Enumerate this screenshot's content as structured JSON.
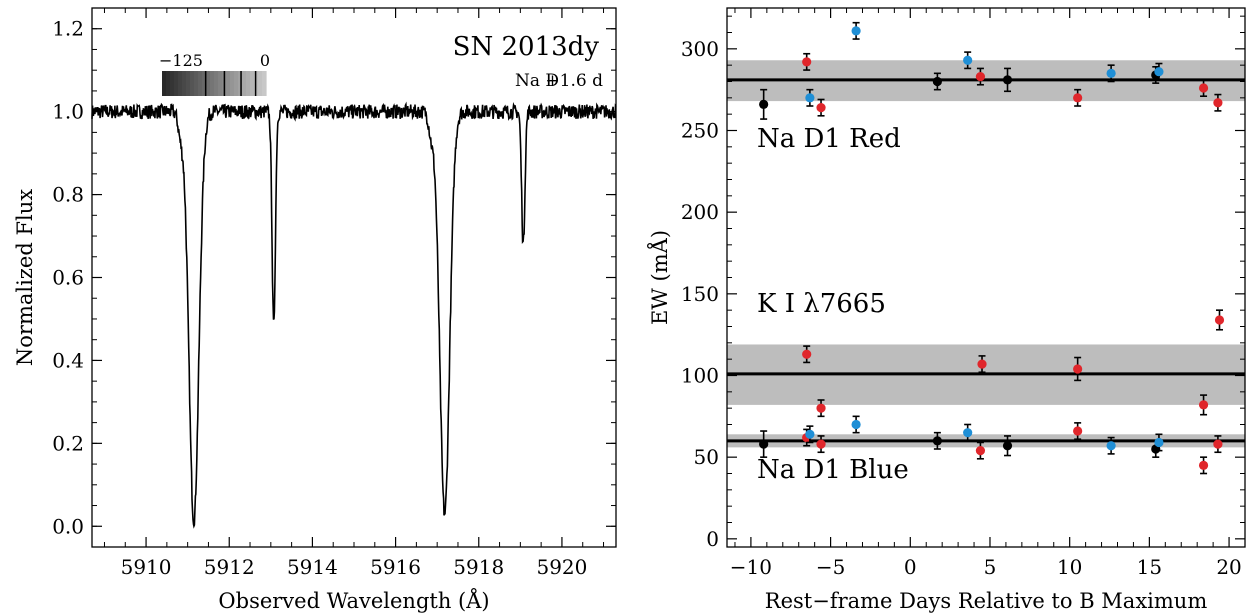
{
  "chart_data": [
    {
      "type": "line",
      "xlabel": "Observed Wavelength (Å)",
      "ylabel": "Normalized Flux",
      "xlim": [
        5908.7,
        5921.3
      ],
      "ylim": [
        -0.05,
        1.25
      ],
      "xticks": [
        5910,
        5912,
        5914,
        5916,
        5918,
        5920
      ],
      "yticks": [
        0.0,
        0.2,
        0.4,
        0.6,
        0.8,
        1.0,
        1.2
      ],
      "xtick_labels": [
        "5910",
        "5912",
        "5914",
        "5916",
        "5918",
        "5920"
      ],
      "ytick_labels": [
        "0.0",
        "0.2",
        "0.4",
        "0.6",
        "0.8",
        "1.0",
        "1.2"
      ],
      "annotation_object": "SN 2013dy",
      "annotation_line": "Na D",
      "annotation_epoch": "+1.6 d",
      "colorbar": {
        "min_label": "−125",
        "max_label": "0"
      },
      "continuum_level": 1.0,
      "absorption_lines": [
        {
          "center": 5911.15,
          "depth": 0.985,
          "width": 0.12
        },
        {
          "center": 5913.07,
          "depth": 0.52,
          "width": 0.04
        },
        {
          "center": 5917.18,
          "depth": 0.97,
          "width": 0.12
        },
        {
          "center": 5919.07,
          "depth": 0.32,
          "width": 0.04
        }
      ]
    },
    {
      "type": "scatter",
      "xlabel": "Rest−frame Days Relative to B Maximum",
      "ylabel": "EW (mÅ)",
      "xlim": [
        -11.5,
        21
      ],
      "ylim": [
        -5,
        325
      ],
      "xticks": [
        -10,
        -5,
        0,
        5,
        10,
        15,
        20
      ],
      "yticks": [
        0,
        50,
        100,
        150,
        200,
        250,
        300
      ],
      "xtick_labels": [
        "−10",
        "−5",
        "0",
        "5",
        "10",
        "15",
        "20"
      ],
      "ytick_labels": [
        "0",
        "50",
        "100",
        "150",
        "200",
        "250",
        "300"
      ],
      "colors": {
        "black": "#000000",
        "blue": "#1f8fd6",
        "red": "#e0262b",
        "band": "#bdbdbd"
      },
      "groups": [
        {
          "label": "Na D1 Red",
          "mean": 281,
          "band": [
            268,
            293
          ],
          "points": [
            {
              "x": -9.2,
              "y": 266,
              "err": 9,
              "color": "black"
            },
            {
              "x": -6.5,
              "y": 292,
              "err": 5,
              "color": "red"
            },
            {
              "x": -6.3,
              "y": 270,
              "err": 5,
              "color": "blue"
            },
            {
              "x": -5.6,
              "y": 264,
              "err": 5,
              "color": "red"
            },
            {
              "x": -3.4,
              "y": 311,
              "err": 5,
              "color": "blue"
            },
            {
              "x": 1.7,
              "y": 280,
              "err": 5,
              "color": "black"
            },
            {
              "x": 3.6,
              "y": 293,
              "err": 5,
              "color": "blue"
            },
            {
              "x": 4.4,
              "y": 283,
              "err": 5,
              "color": "red"
            },
            {
              "x": 6.1,
              "y": 281,
              "err": 7,
              "color": "black"
            },
            {
              "x": 10.5,
              "y": 270,
              "err": 5,
              "color": "red"
            },
            {
              "x": 12.6,
              "y": 285,
              "err": 5,
              "color": "blue"
            },
            {
              "x": 15.4,
              "y": 284,
              "err": 5,
              "color": "black"
            },
            {
              "x": 15.6,
              "y": 286,
              "err": 5,
              "color": "blue"
            },
            {
              "x": 18.4,
              "y": 276,
              "err": 5,
              "color": "red"
            },
            {
              "x": 19.3,
              "y": 267,
              "err": 5,
              "color": "red"
            }
          ]
        },
        {
          "label": "K I λ7665",
          "mean": 101,
          "band": [
            82,
            119
          ],
          "points": [
            {
              "x": -6.5,
              "y": 113,
              "err": 5,
              "color": "red"
            },
            {
              "x": 4.5,
              "y": 107,
              "err": 5,
              "color": "red"
            },
            {
              "x": 10.5,
              "y": 104,
              "err": 7,
              "color": "red"
            },
            {
              "x": 18.4,
              "y": 82,
              "err": 6,
              "color": "red"
            },
            {
              "x": 19.4,
              "y": 134,
              "err": 6,
              "color": "red"
            }
          ]
        },
        {
          "label": "Na D1 Blue",
          "mean": 60,
          "band": [
            56,
            64
          ],
          "points": [
            {
              "x": -9.2,
              "y": 58,
              "err": 8,
              "color": "black"
            },
            {
              "x": -6.5,
              "y": 62,
              "err": 5,
              "color": "red"
            },
            {
              "x": -6.3,
              "y": 64,
              "err": 5,
              "color": "blue"
            },
            {
              "x": -5.6,
              "y": 80,
              "err": 5,
              "color": "red"
            },
            {
              "x": -5.6,
              "y": 58,
              "err": 5,
              "color": "red"
            },
            {
              "x": -3.4,
              "y": 70,
              "err": 5,
              "color": "blue"
            },
            {
              "x": 1.7,
              "y": 60,
              "err": 5,
              "color": "black"
            },
            {
              "x": 3.6,
              "y": 65,
              "err": 5,
              "color": "blue"
            },
            {
              "x": 4.4,
              "y": 54,
              "err": 5,
              "color": "red"
            },
            {
              "x": 6.1,
              "y": 57,
              "err": 6,
              "color": "black"
            },
            {
              "x": 10.5,
              "y": 66,
              "err": 5,
              "color": "red"
            },
            {
              "x": 12.6,
              "y": 57,
              "err": 5,
              "color": "blue"
            },
            {
              "x": 15.4,
              "y": 55,
              "err": 5,
              "color": "black"
            },
            {
              "x": 15.6,
              "y": 59,
              "err": 5,
              "color": "blue"
            },
            {
              "x": 18.4,
              "y": 45,
              "err": 5,
              "color": "red"
            },
            {
              "x": 19.3,
              "y": 58,
              "err": 5,
              "color": "red"
            }
          ]
        }
      ]
    }
  ]
}
